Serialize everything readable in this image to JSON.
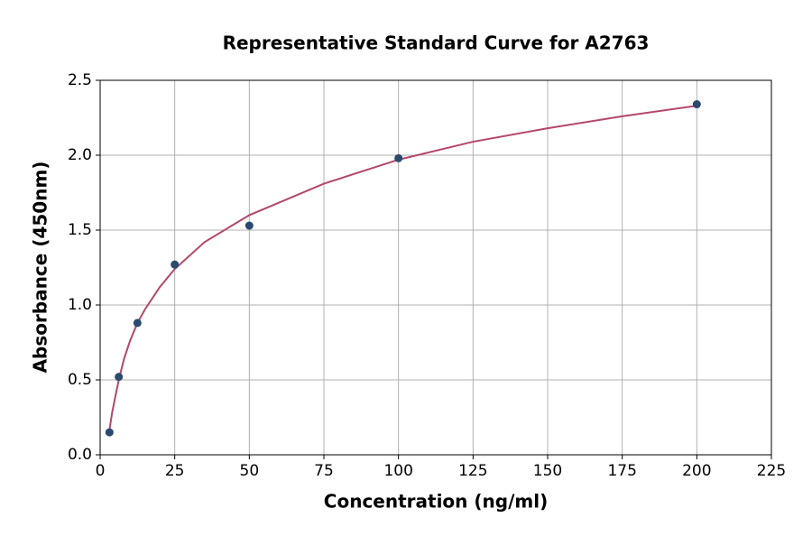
{
  "chart_data": {
    "type": "scatter",
    "title": "Representative Standard Curve for A2763",
    "x_label": "Concentration (ng/ml)",
    "y_label": "Absorbance (450nm)",
    "series": [
      {
        "type": "scatter",
        "color": "#2b4a6f",
        "x": [
          3.125,
          6.25,
          12.5,
          25,
          50,
          100,
          200
        ],
        "values": [
          0.15,
          0.52,
          0.88,
          1.27,
          1.53,
          1.98,
          2.34
        ]
      },
      {
        "type": "line",
        "color": "#b5476a",
        "x": [
          3,
          4,
          5,
          6.25,
          8,
          10,
          12.5,
          15,
          20,
          25,
          35,
          50,
          75,
          100,
          125,
          150,
          175,
          200
        ],
        "values": [
          0.15,
          0.28,
          0.38,
          0.5,
          0.64,
          0.76,
          0.88,
          0.97,
          1.12,
          1.24,
          1.42,
          1.6,
          1.81,
          1.97,
          2.09,
          2.18,
          2.26,
          2.33
        ]
      }
    ],
    "xlim": [
      0,
      225
    ],
    "xticks": [
      0,
      25,
      50,
      75,
      100,
      125,
      150,
      175,
      200,
      225
    ],
    "ylim": [
      0,
      2.5
    ],
    "yticks": [
      {
        "value": 0,
        "label": "0.0"
      },
      0.5,
      {
        "value": 1,
        "label": "1.0"
      },
      1.5,
      {
        "value": 2,
        "label": "2.0"
      },
      2.5
    ],
    "grid": true
  }
}
